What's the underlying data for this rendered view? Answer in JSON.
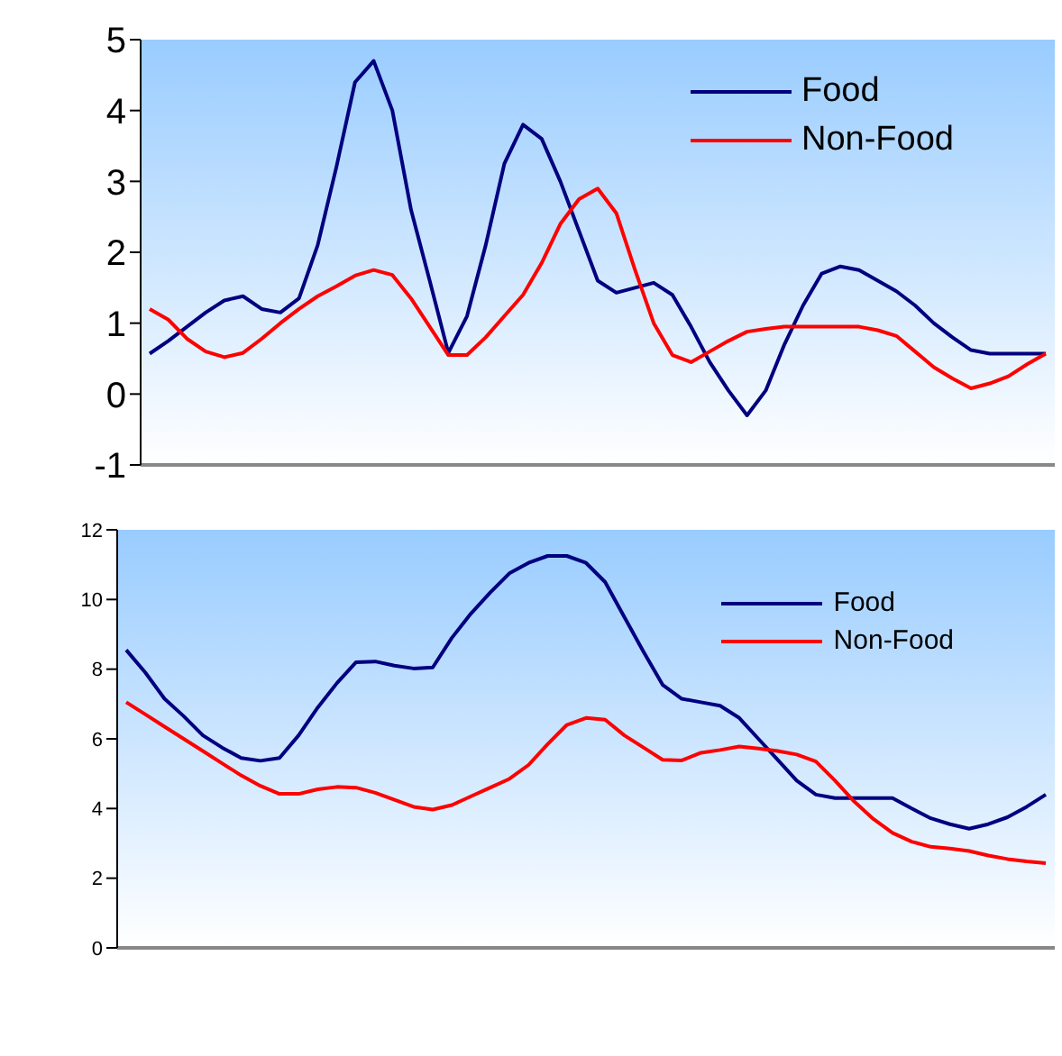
{
  "chart_data": [
    {
      "type": "line",
      "categories": [
        null,
        null,
        null,
        null,
        null,
        null,
        null,
        null,
        null,
        null,
        null,
        null,
        null,
        null,
        null,
        null,
        null,
        null,
        null,
        null,
        null,
        null,
        null,
        null,
        null,
        null,
        null,
        null,
        null,
        null,
        null,
        null,
        null,
        null,
        null,
        null,
        null,
        null,
        null,
        null,
        null,
        null,
        null,
        null,
        null,
        null,
        null,
        null,
        null
      ],
      "series": [
        {
          "name": "Food",
          "color": "#000080",
          "values": [
            0.57,
            0.75,
            0.95,
            1.15,
            1.32,
            1.38,
            1.2,
            1.15,
            1.35,
            2.1,
            3.2,
            4.4,
            4.7,
            4.0,
            2.6,
            1.6,
            0.58,
            1.1,
            2.1,
            3.25,
            3.8,
            3.6,
            3.0,
            2.3,
            1.6,
            1.43,
            1.5,
            1.57,
            1.4,
            0.95,
            0.45,
            0.05,
            -0.3,
            0.05,
            0.7,
            1.25,
            1.7,
            1.8,
            1.75,
            1.6,
            1.45,
            1.25,
            1.0,
            0.8,
            0.62,
            0.57,
            0.57,
            0.57,
            0.57
          ]
        },
        {
          "name": "Non-Food",
          "color": "#ff0000",
          "values": [
            1.2,
            1.05,
            0.78,
            0.6,
            0.52,
            0.58,
            0.78,
            1.0,
            1.2,
            1.38,
            1.52,
            1.67,
            1.75,
            1.68,
            1.35,
            0.95,
            0.55,
            0.55,
            0.8,
            1.1,
            1.4,
            1.85,
            2.4,
            2.75,
            2.9,
            2.55,
            1.75,
            1.0,
            0.55,
            0.45,
            0.6,
            0.75,
            0.88,
            0.92,
            0.95,
            0.95,
            0.95,
            0.95,
            0.95,
            0.9,
            0.82,
            0.6,
            0.38,
            0.22,
            0.08,
            0.15,
            0.25,
            0.42,
            0.57
          ]
        }
      ],
      "ylim": [
        -1,
        5
      ],
      "yticks": [
        -1,
        0,
        1,
        2,
        3,
        4,
        5
      ],
      "legend": "top right",
      "marker": "none",
      "line_style": "solid",
      "tick_labels": "y",
      "grid": false
    },
    {
      "type": "line",
      "categories": [
        null,
        null,
        null,
        null,
        null,
        null,
        null,
        null,
        null,
        null,
        null,
        null,
        null,
        null,
        null,
        null,
        null,
        null,
        null,
        null,
        null,
        null,
        null,
        null,
        null,
        null,
        null,
        null,
        null,
        null,
        null,
        null,
        null,
        null,
        null,
        null,
        null,
        null,
        null,
        null,
        null,
        null,
        null,
        null,
        null,
        null,
        null,
        null,
        null
      ],
      "series": [
        {
          "name": "Food",
          "color": "#000080",
          "values": [
            8.55,
            7.9,
            7.15,
            6.65,
            6.1,
            5.75,
            5.45,
            5.37,
            5.45,
            6.1,
            6.9,
            7.6,
            8.2,
            8.22,
            8.1,
            8.02,
            8.05,
            8.9,
            9.6,
            10.2,
            10.75,
            11.05,
            11.25,
            11.25,
            11.05,
            10.5,
            9.5,
            8.5,
            7.55,
            7.15,
            7.05,
            6.95,
            6.6,
            6.0,
            5.4,
            4.8,
            4.4,
            4.3,
            4.3,
            4.3,
            4.3,
            4.0,
            3.72,
            3.55,
            3.42,
            3.55,
            3.75,
            4.05,
            4.4
          ]
        },
        {
          "name": "Non-Food",
          "color": "#ff0000",
          "values": [
            7.05,
            6.7,
            6.35,
            6.0,
            5.65,
            5.3,
            4.95,
            4.65,
            4.42,
            4.42,
            4.55,
            4.62,
            4.6,
            4.45,
            4.25,
            4.05,
            3.97,
            4.1,
            4.35,
            4.6,
            4.85,
            5.25,
            5.85,
            6.4,
            6.6,
            6.55,
            6.1,
            5.75,
            5.4,
            5.38,
            5.6,
            5.68,
            5.78,
            5.72,
            5.65,
            5.55,
            5.35,
            4.8,
            4.2,
            3.7,
            3.3,
            3.05,
            2.9,
            2.85,
            2.78,
            2.65,
            2.55,
            2.48,
            2.43
          ]
        }
      ],
      "ylim": [
        0,
        12
      ],
      "yticks": [
        0,
        2,
        4,
        6,
        8,
        10,
        12
      ],
      "legend": "top right",
      "marker": "none",
      "line_style": "solid",
      "tick_labels": "y",
      "grid": false
    }
  ]
}
